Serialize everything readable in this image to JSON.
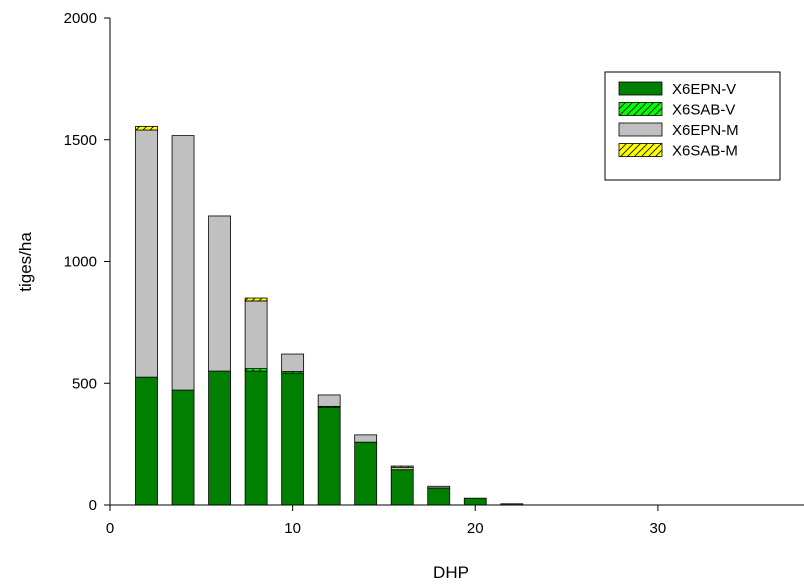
{
  "chart_data": {
    "type": "bar",
    "stacked": true,
    "x": [
      2,
      4,
      6,
      8,
      10,
      12,
      14,
      16,
      18,
      20,
      22
    ],
    "series": [
      {
        "name": "X6EPN-V",
        "values": [
          525,
          472,
          550,
          550,
          542,
          400,
          258,
          145,
          70,
          28,
          5
        ],
        "color": "#007f00",
        "pattern": "solid"
      },
      {
        "name": "X6SAB-V",
        "values": [
          0,
          0,
          0,
          10,
          6,
          5,
          0,
          0,
          0,
          0,
          0
        ],
        "color": "#00ff00",
        "pattern": "hatch"
      },
      {
        "name": "X6EPN-M",
        "values": [
          1015,
          1045,
          637,
          278,
          72,
          47,
          30,
          10,
          7,
          0,
          0
        ],
        "color": "#c0c0c0",
        "pattern": "solid"
      },
      {
        "name": "X6SAB-M",
        "values": [
          15,
          0,
          0,
          12,
          0,
          0,
          0,
          5,
          0,
          0,
          0
        ],
        "color": "#ffff00",
        "pattern": "hatch"
      }
    ],
    "xlabel": "DHP",
    "ylabel": "tiges/ha",
    "xlim": [
      0,
      38
    ],
    "ylim": [
      0,
      2000
    ],
    "xticks": [
      "0",
      "10",
      "20",
      "30"
    ],
    "yticks": [
      "0",
      "500",
      "1000",
      "1500",
      "2000"
    ],
    "grid": false,
    "legend": "top-right"
  }
}
